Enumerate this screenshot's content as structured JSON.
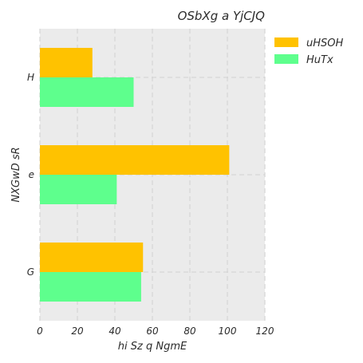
{
  "chart_data": {
    "type": "bar",
    "orientation": "horizontal",
    "title": "OSbXg a YjCJQ",
    "xlabel": "hi Sz  q NgmE",
    "ylabel": "NXGwD sR",
    "categories": [
      "H",
      "e",
      "G"
    ],
    "series": [
      {
        "name": "uHSOH",
        "values": [
          28,
          101,
          55
        ],
        "color": "#ffc200"
      },
      {
        "name": "HuTx",
        "values": [
          50,
          41,
          54
        ],
        "color": "#5eff8d"
      }
    ],
    "xlim": [
      0,
      120
    ],
    "xticks": [
      0,
      20,
      40,
      60,
      80,
      100,
      120
    ],
    "grid": true,
    "legend_position": "top-right",
    "background": "#ebebeb",
    "grid_color": "#d5d5d5"
  }
}
